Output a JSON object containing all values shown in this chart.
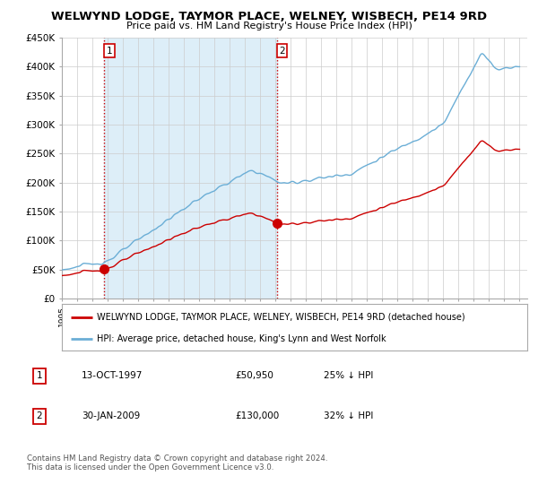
{
  "title": "WELWYND LODGE, TAYMOR PLACE, WELNEY, WISBECH, PE14 9RD",
  "subtitle": "Price paid vs. HM Land Registry's House Price Index (HPI)",
  "ylim": [
    0,
    450000
  ],
  "yticks": [
    0,
    50000,
    100000,
    150000,
    200000,
    250000,
    300000,
    350000,
    400000,
    450000
  ],
  "ytick_labels": [
    "£0",
    "£50K",
    "£100K",
    "£150K",
    "£200K",
    "£250K",
    "£300K",
    "£350K",
    "£400K",
    "£450K"
  ],
  "sale1_date": 1997.79,
  "sale1_price": 50950,
  "sale1_label": "1",
  "sale2_date": 2009.08,
  "sale2_price": 130000,
  "sale2_label": "2",
  "hpi_color": "#6baed6",
  "hpi_fill_color": "#ddeef8",
  "sale_color": "#cc0000",
  "legend_sale_label": "WELWYND LODGE, TAYMOR PLACE, WELNEY, WISBECH, PE14 9RD (detached house)",
  "legend_hpi_label": "HPI: Average price, detached house, King's Lynn and West Norfolk",
  "table_row1": [
    "1",
    "13-OCT-1997",
    "£50,950",
    "25% ↓ HPI"
  ],
  "table_row2": [
    "2",
    "30-JAN-2009",
    "£130,000",
    "32% ↓ HPI"
  ],
  "footnote": "Contains HM Land Registry data © Crown copyright and database right 2024.\nThis data is licensed under the Open Government Licence v3.0.",
  "bg_color": "#ffffff",
  "grid_color": "#cccccc"
}
